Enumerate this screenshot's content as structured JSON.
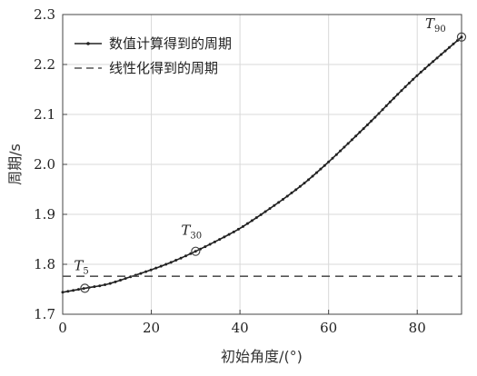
{
  "chart_data": {
    "type": "line",
    "xlabel": "初始角度/(°)",
    "ylabel": "周期/s",
    "xlim": [
      0,
      90
    ],
    "ylim": [
      1.7,
      2.3
    ],
    "xticks": [
      0,
      20,
      40,
      60,
      80
    ],
    "xtick_labels": [
      "0",
      "20",
      "40",
      "60",
      "80"
    ],
    "yticks": [
      1.7,
      1.8,
      1.9,
      2.0,
      2.1,
      2.2,
      2.3
    ],
    "ytick_labels": [
      "1.7",
      "1.8",
      "1.9",
      "2.0",
      "2.1",
      "2.2",
      "2.3"
    ],
    "grid": true,
    "legend_position": "top-left",
    "series": [
      {
        "name": "数值计算得到的周期",
        "style": "solid-dotted",
        "color": "#222222",
        "x": [
          0,
          5,
          10,
          15,
          20,
          25,
          30,
          35,
          40,
          45,
          50,
          55,
          60,
          65,
          70,
          75,
          80,
          85,
          90
        ],
        "y": [
          1.744,
          1.752,
          1.76,
          1.774,
          1.789,
          1.806,
          1.826,
          1.848,
          1.872,
          1.901,
          1.932,
          1.966,
          2.005,
          2.047,
          2.09,
          2.135,
          2.178,
          2.217,
          2.255
        ]
      },
      {
        "name": "线性化得到的周期",
        "style": "dashed",
        "color": "#555555",
        "x": [
          0,
          90
        ],
        "y": [
          1.776,
          1.776
        ]
      }
    ],
    "annotations": [
      {
        "main": "T",
        "sub": "5",
        "x": 5,
        "y": 1.752
      },
      {
        "main": "T",
        "sub": "30",
        "x": 30,
        "y": 1.826
      },
      {
        "main": "T",
        "sub": "90",
        "x": 90,
        "y": 2.255
      }
    ]
  }
}
